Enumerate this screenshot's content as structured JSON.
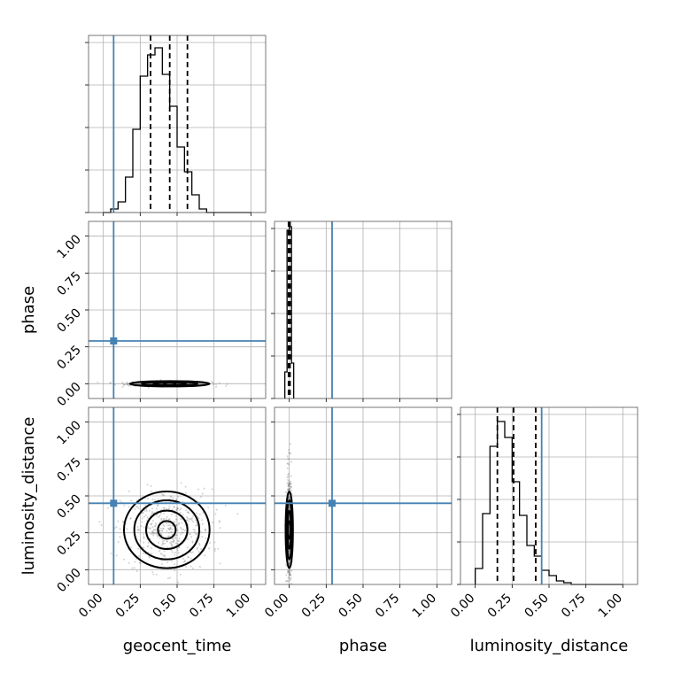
{
  "chart_data": {
    "type": "corner",
    "parameters": [
      "geocent_time",
      "phase",
      "luminosity_distance"
    ],
    "tick_values": [
      0.0,
      0.25,
      0.5,
      0.75,
      1.0
    ],
    "tick_labels": [
      "0.00",
      "0.25",
      "0.50",
      "0.75",
      "1.00"
    ],
    "range": [
      -0.1,
      1.1
    ],
    "grid": true,
    "colors": {
      "truth": "#4682b4",
      "histogram": "#000000",
      "quantile": "#000000",
      "points": "#808080"
    },
    "truths": {
      "geocent_time": 0.07,
      "phase": 0.29,
      "luminosity_distance": 0.45
    },
    "marginals": [
      {
        "parameter": "geocent_time",
        "bin_edges": [
          0.0,
          0.05,
          0.1,
          0.15,
          0.2,
          0.25,
          0.3,
          0.35,
          0.4,
          0.45,
          0.5,
          0.55,
          0.6,
          0.65,
          0.7,
          0.75,
          0.8,
          0.85,
          0.9,
          0.95,
          1.0
        ],
        "counts": [
          0,
          0.02,
          0.06,
          0.2,
          0.47,
          0.77,
          0.89,
          0.93,
          0.78,
          0.6,
          0.37,
          0.23,
          0.1,
          0.02,
          0,
          0,
          0,
          0,
          0,
          0
        ],
        "quantiles": [
          0.32,
          0.45,
          0.57
        ]
      },
      {
        "parameter": "phase",
        "bin_edges": [
          -0.03,
          -0.015,
          0.0,
          0.015,
          0.03
        ],
        "counts": [
          0.15,
          0.95,
          0.97,
          0.2
        ],
        "quantiles": [
          -0.005,
          0.0,
          0.005
        ]
      },
      {
        "parameter": "luminosity_distance",
        "bin_edges": [
          0.0,
          0.05,
          0.1,
          0.15,
          0.2,
          0.25,
          0.3,
          0.35,
          0.4,
          0.45,
          0.5,
          0.55,
          0.6,
          0.65,
          0.7,
          0.75,
          0.8,
          0.85,
          0.9,
          0.95,
          1.0
        ],
        "counts": [
          0.09,
          0.4,
          0.78,
          0.92,
          0.83,
          0.58,
          0.39,
          0.22,
          0.16,
          0.08,
          0.05,
          0.02,
          0.01,
          0,
          0,
          0,
          0,
          0,
          0,
          0
        ],
        "quantiles": [
          0.15,
          0.26,
          0.41
        ]
      }
    ],
    "joint": [
      {
        "x": "geocent_time",
        "y": "phase",
        "center": [
          0.45,
          0.0
        ],
        "contour_radii": [
          [
            0.27,
            0.018
          ],
          [
            0.19,
            0.012
          ],
          [
            0.11,
            0.007
          ],
          [
            0.04,
            0.004
          ]
        ],
        "scatter_spread": [
          0.35,
          0.02
        ]
      },
      {
        "x": "geocent_time",
        "y": "luminosity_distance",
        "center": [
          0.43,
          0.27
        ],
        "contour_radii": [
          [
            0.29,
            0.26
          ],
          [
            0.22,
            0.2
          ],
          [
            0.14,
            0.13
          ],
          [
            0.06,
            0.06
          ]
        ],
        "scatter_spread": [
          0.38,
          0.34
        ]
      },
      {
        "x": "phase",
        "y": "luminosity_distance",
        "center": [
          0.0,
          0.27
        ],
        "contour_radii": [
          [
            0.025,
            0.26
          ],
          [
            0.018,
            0.2
          ],
          [
            0.012,
            0.13
          ],
          [
            0.006,
            0.06
          ]
        ],
        "scatter_spread": [
          0.02,
          0.5
        ]
      }
    ]
  }
}
